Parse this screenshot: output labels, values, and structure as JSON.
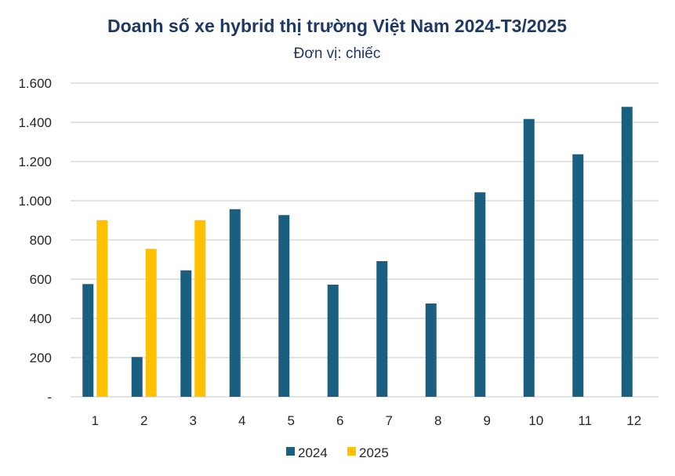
{
  "chart_data": {
    "type": "bar",
    "title": "Doanh số xe hybrid thị trường Việt Nam 2024-T3/2025",
    "subtitle": "Đơn vị: chiếc",
    "xlabel": "",
    "ylabel": "",
    "categories": [
      "1",
      "2",
      "3",
      "4",
      "5",
      "6",
      "7",
      "8",
      "9",
      "10",
      "11",
      "12"
    ],
    "series": [
      {
        "name": "2024",
        "color": "#1a5e80",
        "values": [
          575,
          203,
          645,
          957,
          927,
          572,
          692,
          476,
          1043,
          1417,
          1237,
          1479
        ]
      },
      {
        "name": "2025",
        "color": "#ffc000",
        "values": [
          901,
          755,
          901,
          null,
          null,
          null,
          null,
          null,
          null,
          null,
          null,
          null
        ]
      }
    ],
    "ylim": [
      0,
      1600
    ],
    "yticks": [
      0,
      200,
      400,
      600,
      800,
      1000,
      1200,
      1400,
      1600
    ],
    "ytick_labels": [
      "-",
      "200",
      "400",
      "600",
      "800",
      "1.000",
      "1.200",
      "1.400",
      "1.600"
    ],
    "grid": true,
    "legend": "bottom"
  }
}
